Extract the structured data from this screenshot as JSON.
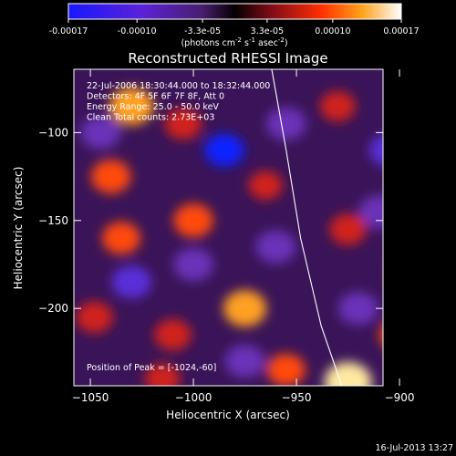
{
  "chart_data": {
    "type": "heatmap",
    "title": "Reconstructed RHESSI Image",
    "xlabel": "Heliocentric X (arcsec)",
    "ylabel": "Heliocentric Y (arcsec)",
    "xlim": [
      -1058,
      -908
    ],
    "ylim": [
      -244,
      -64
    ],
    "x_ticks": [
      -1050,
      -1000,
      -950,
      -900
    ],
    "y_ticks": [
      -100,
      -150,
      -200
    ],
    "colorbar": {
      "tick_labels": [
        "-0.00017",
        "-0.00010",
        "-3.3e-05",
        "3.3e-05",
        "0.00010",
        "0.00017"
      ],
      "tick_values": [
        -0.00017,
        -0.0001,
        -3.3e-05,
        3.3e-05,
        0.0001,
        0.00017
      ],
      "range": [
        -0.00017,
        0.00017
      ],
      "unit_label": "(photons cm",
      "unit_exp1": "-2",
      "unit_mid": " s",
      "unit_exp2": "-1",
      "unit_end": " asec",
      "unit_exp3": "-2",
      "unit_close": ")"
    },
    "info_lines": [
      "22-Jul-2006 18:30:44.000 to 18:32:44.000",
      "Detectors: 4F 5F 6F 7F 8F, Att 0",
      "Energy Range: 25.0 - 50.0 keV",
      "Clean     Total counts: 2.73E+03"
    ],
    "peak_label": "Position of Peak = [-1024,-60]",
    "peak_position": [
      -1024,
      -60
    ],
    "limb_curve": [
      [
        -962,
        -64
      ],
      [
        -955,
        -110
      ],
      [
        -948,
        -160
      ],
      [
        -938,
        -210
      ],
      [
        -928,
        -244
      ]
    ],
    "hot_spots": [
      {
        "x": -1030,
        "y": -85,
        "v": 0.00015
      },
      {
        "x": -1005,
        "y": -95,
        "v": 0.0001
      },
      {
        "x": -1040,
        "y": -125,
        "v": 0.00012
      },
      {
        "x": -1035,
        "y": -160,
        "v": 0.00011
      },
      {
        "x": -1000,
        "y": -150,
        "v": 0.00012
      },
      {
        "x": -975,
        "y": -200,
        "v": 0.00014
      },
      {
        "x": -1010,
        "y": -215,
        "v": 0.0001
      },
      {
        "x": -893,
        "y": -180,
        "v": 0.00016
      },
      {
        "x": -900,
        "y": -215,
        "v": 0.00012
      },
      {
        "x": -930,
        "y": -85,
        "v": 9e-05
      },
      {
        "x": -925,
        "y": -155,
        "v": 0.0001
      },
      {
        "x": -955,
        "y": -235,
        "v": 0.00011
      },
      {
        "x": -925,
        "y": -242,
        "v": 0.00017
      },
      {
        "x": -1048,
        "y": -205,
        "v": 0.0001
      },
      {
        "x": -965,
        "y": -130,
        "v": 8e-05
      },
      {
        "x": -1015,
        "y": -240,
        "v": 9e-05
      }
    ],
    "cold_spots": [
      {
        "x": -985,
        "y": -110,
        "v": -0.00017
      },
      {
        "x": -955,
        "y": -95,
        "v": -0.0001
      },
      {
        "x": -905,
        "y": -110,
        "v": -0.00012
      },
      {
        "x": -1030,
        "y": -185,
        "v": -0.00012
      },
      {
        "x": -910,
        "y": -145,
        "v": -0.00011
      },
      {
        "x": -1000,
        "y": -175,
        "v": -8e-05
      },
      {
        "x": -960,
        "y": -165,
        "v": -9e-05
      },
      {
        "x": -920,
        "y": -200,
        "v": -0.00011
      },
      {
        "x": -975,
        "y": -230,
        "v": -0.0001
      },
      {
        "x": -1045,
        "y": -100,
        "v": -7e-05
      }
    ]
  },
  "footer": {
    "timestamp": "16-Jul-2013 13:27"
  }
}
